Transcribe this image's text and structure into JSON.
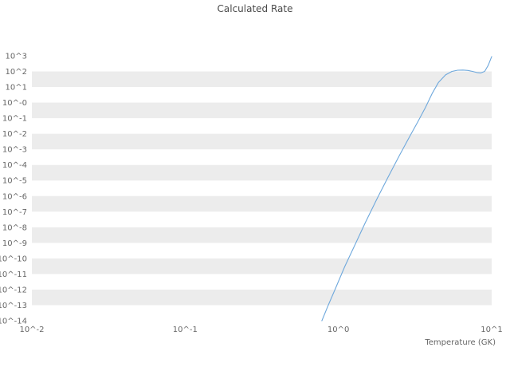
{
  "chart_data": {
    "type": "line",
    "title": "Calculated Rate",
    "xlabel": "Temperature (GK)",
    "ylabel": "",
    "xscale": "log",
    "yscale": "log",
    "xlim": [
      0.01,
      10
    ],
    "ylim": [
      1e-14,
      1000
    ],
    "grid": "alternating-horizontal-bands",
    "band_color": "#ececec",
    "line_color": "#6ea8dc",
    "x_ticks": [
      {
        "value": 0.01,
        "label": "10^-2"
      },
      {
        "value": 0.1,
        "label": "10^-1"
      },
      {
        "value": 1,
        "label": "10^0"
      },
      {
        "value": 10,
        "label": "10^1"
      }
    ],
    "y_tick_labels": [
      "10^3",
      "10^2",
      "10^1",
      "10^-0",
      "10^-1",
      "10^-2",
      "10^-3",
      "10^-4",
      "10^-5",
      "10^-6",
      "10^-7",
      "10^-8",
      "10^-9",
      "10^-10",
      "10^-11",
      "10^-12",
      "10^-13",
      "10^-14"
    ],
    "series": [
      {
        "name": "calculated-rate",
        "x": [
          0.78,
          0.85,
          0.95,
          1.1,
          1.3,
          1.5,
          1.8,
          2.1,
          2.5,
          2.9,
          3.3,
          3.7,
          4.1,
          4.5,
          5.0,
          5.5,
          6.0,
          6.5,
          7.0,
          7.5,
          8.0,
          8.5,
          9.0,
          9.5,
          10.0
        ],
        "y": [
          1e-14,
          8e-14,
          1e-12,
          3e-11,
          1e-09,
          2e-08,
          8e-07,
          1.5e-05,
          0.0004,
          0.006,
          0.06,
          0.5,
          4,
          20,
          60,
          100,
          120,
          122,
          115,
          100,
          85,
          80,
          100,
          250,
          900
        ]
      }
    ]
  }
}
